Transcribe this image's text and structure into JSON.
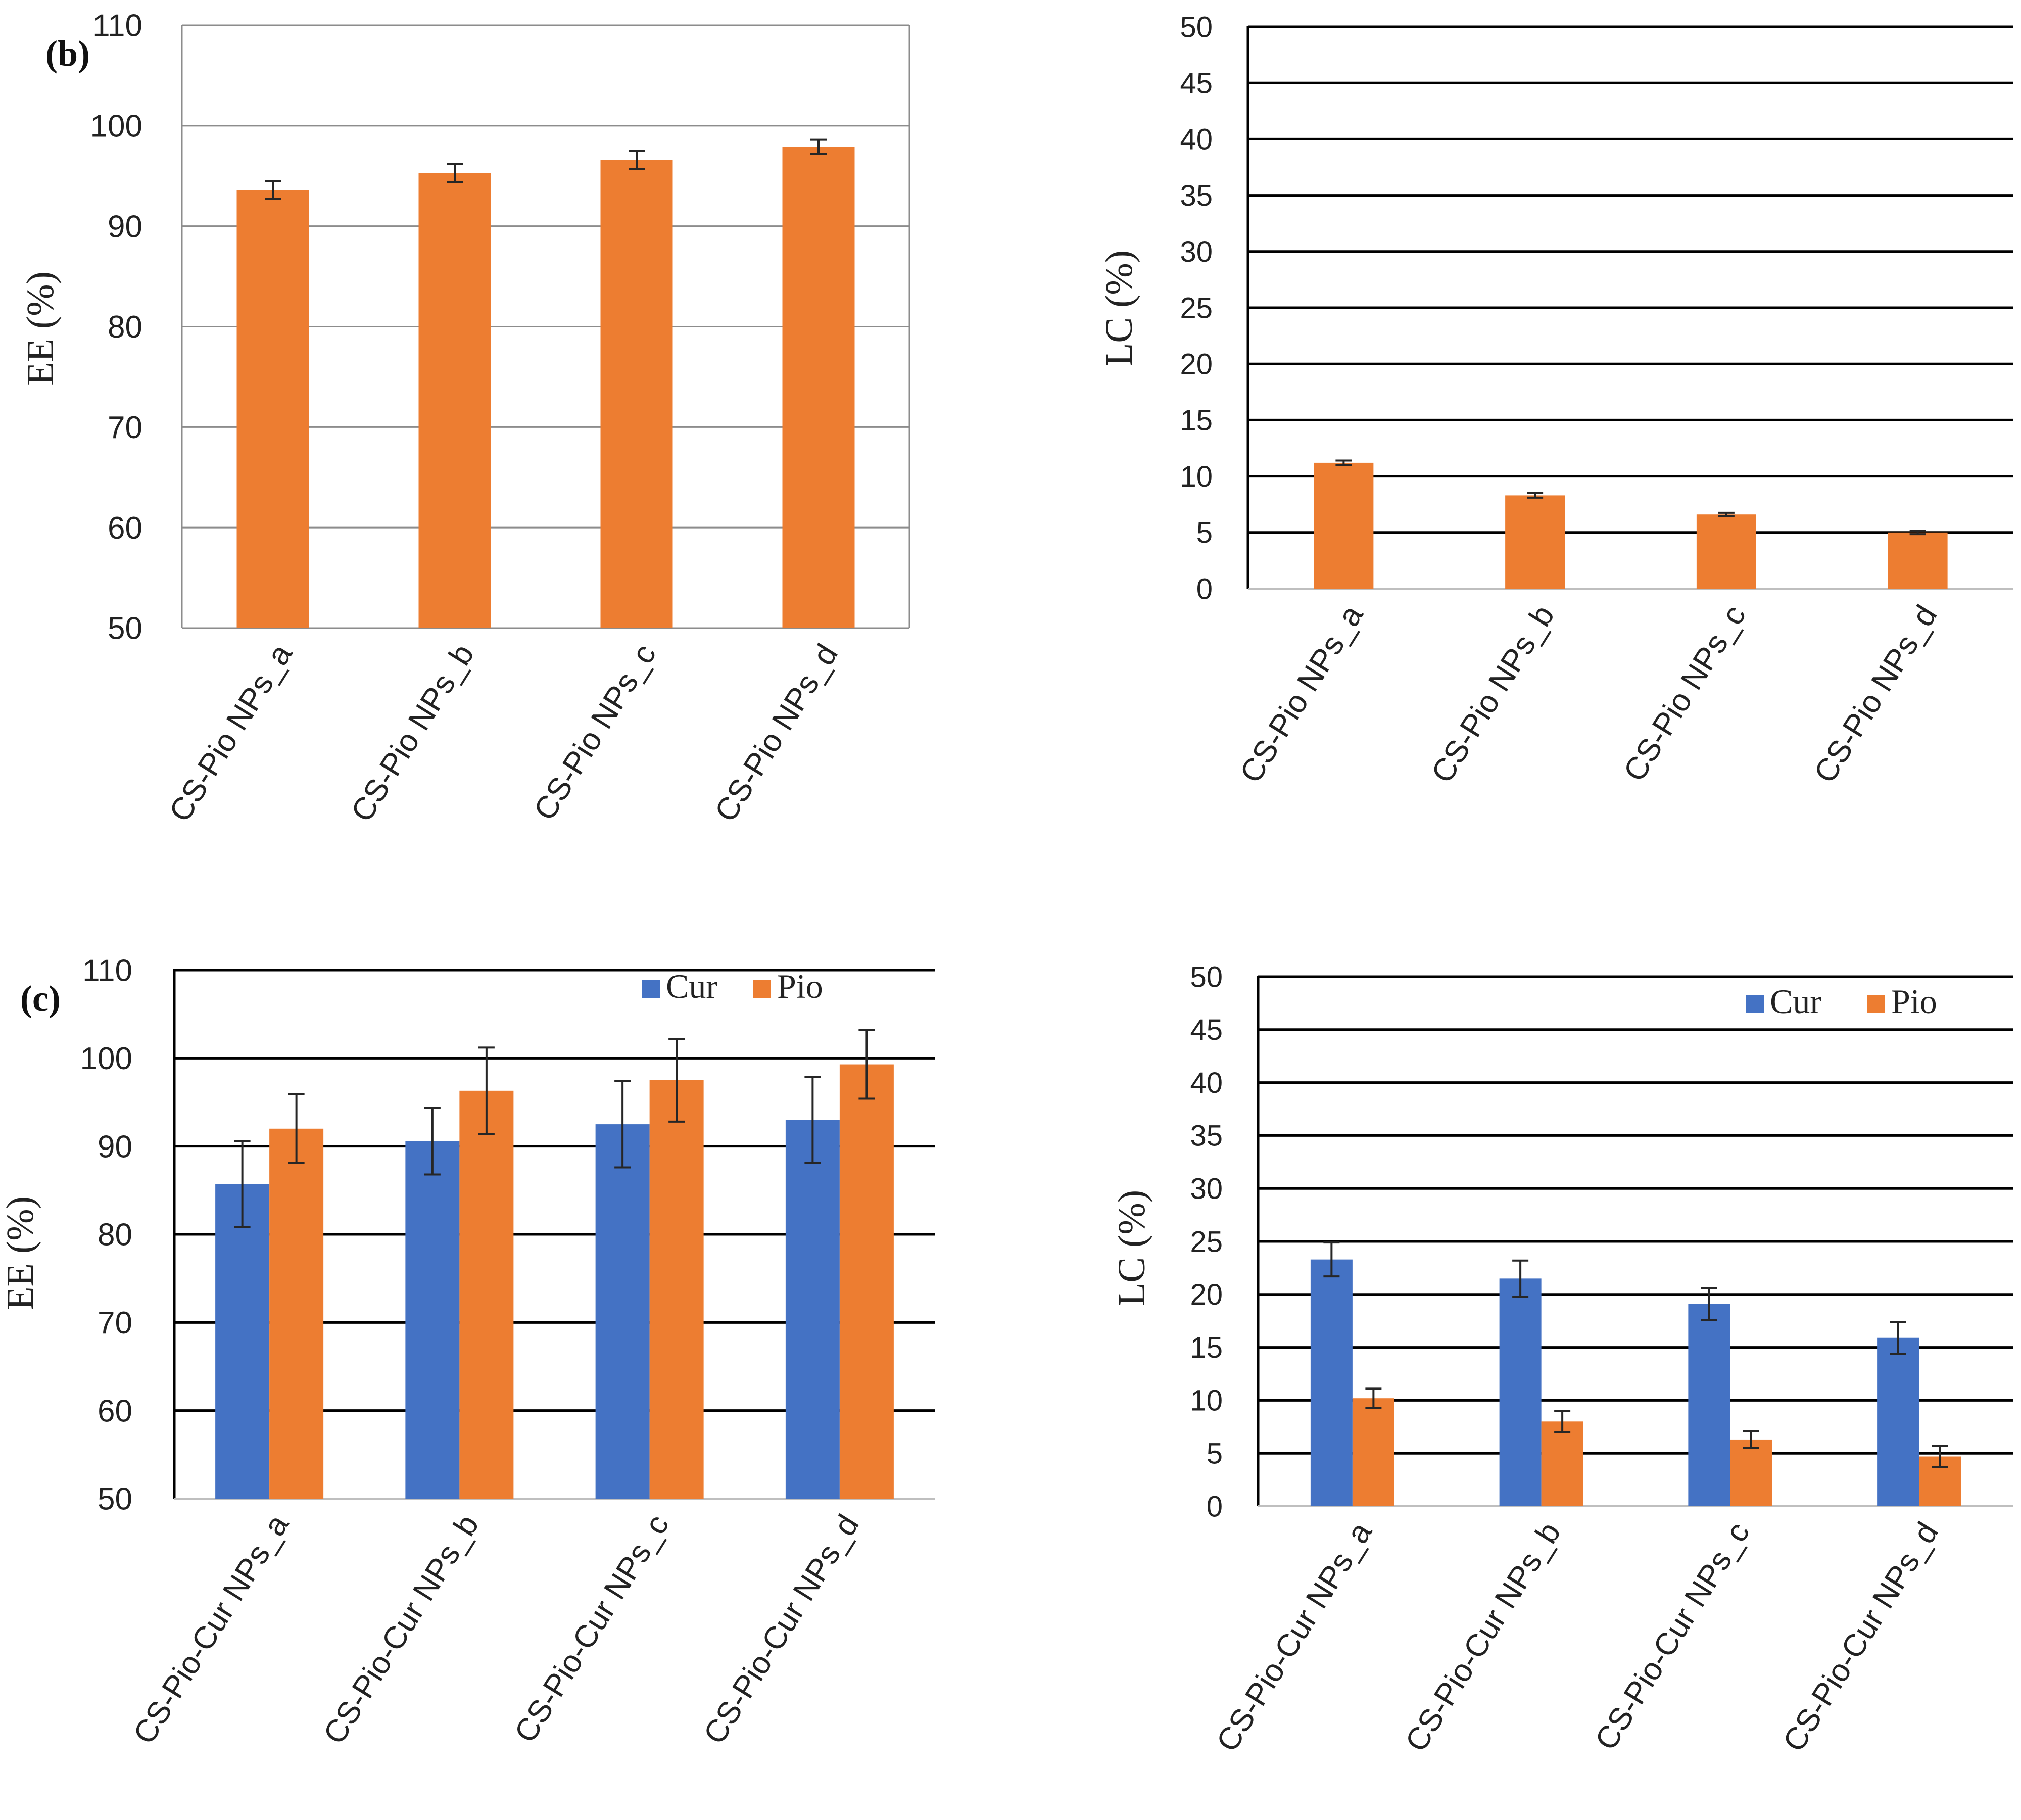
{
  "colors": {
    "orange": "#ED7D31",
    "blue": "#4472C4"
  },
  "chart_data": [
    {
      "type": "bar",
      "panel_label": "(b)",
      "ylabel": "EE (%)",
      "ylim": [
        50,
        110
      ],
      "yticks": [
        50,
        60,
        70,
        80,
        90,
        100,
        110
      ],
      "grid": true,
      "categories": [
        "CS-Pio NPs_a",
        "CS-Pio NPs_b",
        "CS-Pio NPs_c",
        "CS-Pio NPs_d"
      ],
      "series": [
        {
          "values": [
            93.6,
            95.3,
            96.6,
            97.9
          ],
          "errors": [
            0.9,
            0.9,
            0.9,
            0.7
          ],
          "color": "#ED7D31"
        }
      ]
    },
    {
      "type": "bar",
      "ylabel": "LC (%)",
      "ylim": [
        0,
        50
      ],
      "yticks": [
        0,
        5,
        10,
        15,
        20,
        25,
        30,
        35,
        40,
        45,
        50
      ],
      "grid": true,
      "categories": [
        "CS-Pio NPs_a",
        "CS-Pio NPs_b",
        "CS-Pio NPs_c",
        "CS-Pio NPs_d"
      ],
      "series": [
        {
          "values": [
            11.2,
            8.3,
            6.6,
            5.0
          ],
          "errors": [
            0.2,
            0.2,
            0.15,
            0.15
          ],
          "color": "#ED7D31"
        }
      ]
    },
    {
      "type": "bar",
      "panel_label": "(c)",
      "ylabel": "EE (%)",
      "ylim": [
        50,
        110
      ],
      "yticks": [
        50,
        60,
        70,
        80,
        90,
        100,
        110
      ],
      "grid": true,
      "legend_position": "top-right",
      "categories": [
        "CS-Pio-Cur NPs_a",
        "CS-Pio-Cur NPs_b",
        "CS-Pio-Cur NPs_c",
        "CS-Pio-Cur NPs_d"
      ],
      "series": [
        {
          "name": "Cur",
          "values": [
            85.7,
            90.6,
            92.5,
            93.0
          ],
          "errors": [
            4.9,
            3.8,
            4.9,
            4.9
          ],
          "color": "#4472C4"
        },
        {
          "name": "Pio",
          "values": [
            92.0,
            96.3,
            97.5,
            99.3
          ],
          "errors": [
            3.9,
            4.9,
            4.7,
            3.9
          ],
          "color": "#ED7D31"
        }
      ]
    },
    {
      "type": "bar",
      "ylabel": "LC (%)",
      "ylim": [
        0,
        50
      ],
      "yticks": [
        0,
        5,
        10,
        15,
        20,
        25,
        30,
        35,
        40,
        45,
        50
      ],
      "grid": true,
      "legend_position": "top-right",
      "categories": [
        "CS-Pio-Cur NPs_a",
        "CS-Pio-Cur NPs_b",
        "CS-Pio-Cur NPs_c",
        "CS-Pio-Cur NPs_d"
      ],
      "series": [
        {
          "name": "Cur",
          "values": [
            23.3,
            21.5,
            19.1,
            15.9
          ],
          "errors": [
            1.6,
            1.7,
            1.5,
            1.5
          ],
          "color": "#4472C4"
        },
        {
          "name": "Pio",
          "values": [
            10.2,
            8.0,
            6.3,
            4.7
          ],
          "errors": [
            0.9,
            1.0,
            0.8,
            1.0
          ],
          "color": "#ED7D31"
        }
      ]
    }
  ]
}
